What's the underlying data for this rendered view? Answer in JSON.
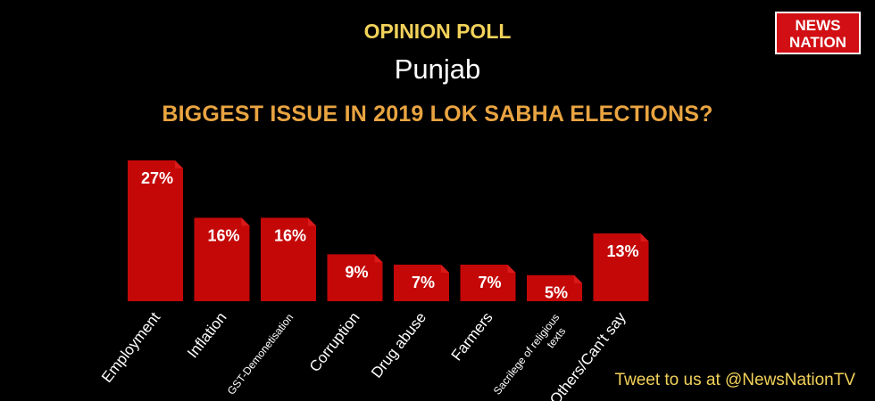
{
  "header": {
    "poll_label": "OPINION POLL",
    "region": "Punjab",
    "question": "BIGGEST ISSUE IN 2019  LOK SABHA ELECTIONS?"
  },
  "logo": {
    "line1": "NEWS",
    "line2": "NATION"
  },
  "footer": {
    "tweet": "Tweet to us at @NewsNationTV"
  },
  "colors": {
    "bar": "#c40808",
    "bar_top": "#d91a1a",
    "background": "#000000",
    "poll_label": "#f2d25a",
    "question": "#e9a441"
  },
  "chart_data": {
    "type": "bar",
    "categories": [
      [
        "Employment"
      ],
      [
        "Inflation"
      ],
      [
        "GST-Demonetisation"
      ],
      [
        "Corruption"
      ],
      [
        "Drug abuse"
      ],
      [
        "Farmers"
      ],
      [
        "Sacrilege of religious",
        "texts"
      ],
      [
        "Others/Can't say"
      ]
    ],
    "values": [
      27,
      16,
      16,
      9,
      7,
      7,
      5,
      13
    ],
    "data_labels": [
      "27%",
      "16%",
      "16%",
      "9%",
      "7%",
      "7%",
      "5%",
      "13%"
    ],
    "unit": "%",
    "ylim": [
      0,
      27
    ],
    "grid": false,
    "legend": "none"
  }
}
